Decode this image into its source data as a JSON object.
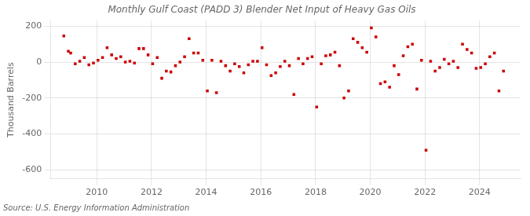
{
  "chart_data": {
    "type": "scatter",
    "title": "Monthly Gulf Coast (PADD 3) Blender Net Input of Heavy Gas Oils",
    "ylabel": "Thousand Barrels",
    "annotations": [
      "Source: U.S. Energy Information Administration"
    ],
    "color": "#cc0000",
    "marker": "square",
    "grid": true,
    "ylim": [
      -650,
      230
    ],
    "yticks": [
      -600,
      -400,
      -200,
      0,
      200
    ],
    "xlim": [
      2008.3,
      2025.5
    ],
    "xticks": [
      2010,
      2012,
      2014,
      2016,
      2018,
      2020,
      2022,
      2024
    ],
    "x": [
      2008.7916666666667,
      2008.9583333333333,
      2009.0416666666667,
      2009.2083333333333,
      2009.375,
      2009.5416666666667,
      2009.7083333333333,
      2009.875,
      2010.0416666666667,
      2010.2083333333333,
      2010.375,
      2010.5416666666667,
      2010.7083333333333,
      2010.875,
      2011.0416666666667,
      2011.2083333333333,
      2011.375,
      2011.5416666666667,
      2011.7083333333333,
      2011.875,
      2012.0416666666667,
      2012.2083333333333,
      2012.375,
      2012.5416666666667,
      2012.7083333333333,
      2012.875,
      2013.0416666666667,
      2013.2083333333333,
      2013.375,
      2013.5416666666667,
      2013.7083333333333,
      2013.875,
      2014.0416666666667,
      2014.2083333333333,
      2014.375,
      2014.5416666666667,
      2014.7083333333333,
      2014.875,
      2015.0416666666667,
      2015.2083333333333,
      2015.375,
      2015.5416666666667,
      2015.7083333333333,
      2015.875,
      2016.0416666666667,
      2016.2083333333333,
      2016.375,
      2016.5416666666667,
      2016.7083333333333,
      2016.875,
      2017.0416666666667,
      2017.2083333333333,
      2017.375,
      2017.5416666666667,
      2017.7083333333333,
      2017.875,
      2018.0416666666667,
      2018.2083333333333,
      2018.375,
      2018.5416666666667,
      2018.7083333333333,
      2018.875,
      2019.0416666666667,
      2019.2083333333333,
      2019.375,
      2019.5416666666667,
      2019.7083333333333,
      2019.875,
      2020.0416666666667,
      2020.2083333333333,
      2020.375,
      2020.5416666666667,
      2020.7083333333333,
      2020.875,
      2021.0416666666667,
      2021.2083333333333,
      2021.375,
      2021.5416666666667,
      2021.7083333333333,
      2021.875,
      2022.0416666666667,
      2022.2083333333333,
      2022.375,
      2022.5416666666667,
      2022.7083333333333,
      2022.875,
      2023.0416666666667,
      2023.2083333333333,
      2023.375,
      2023.5416666666667,
      2023.7083333333333,
      2023.875,
      2024.0416666666667,
      2024.2083333333333,
      2024.375,
      2024.5416666666667,
      2024.7083333333333,
      2024.875
    ],
    "values": [
      145,
      60,
      50,
      -10,
      5,
      25,
      -15,
      -5,
      10,
      25,
      80,
      40,
      20,
      30,
      0,
      5,
      -5,
      75,
      75,
      40,
      -10,
      25,
      -90,
      -50,
      -55,
      -20,
      0,
      30,
      130,
      50,
      50,
      10,
      -160,
      10,
      -170,
      5,
      -20,
      -50,
      -10,
      -25,
      -60,
      -15,
      5,
      5,
      80,
      -15,
      -75,
      -60,
      -25,
      5,
      -20,
      -180,
      20,
      -10,
      20,
      30,
      -250,
      -10,
      35,
      40,
      55,
      -20,
      -200,
      -160,
      130,
      110,
      80,
      55,
      190,
      140,
      -120,
      -110,
      -140,
      -20,
      -70,
      35,
      85,
      100,
      -150,
      10,
      -490,
      5,
      -50,
      -30,
      15,
      -10,
      5,
      -30,
      100,
      70,
      50,
      -35,
      -30,
      -10,
      30,
      50,
      -160,
      -50
    ]
  }
}
